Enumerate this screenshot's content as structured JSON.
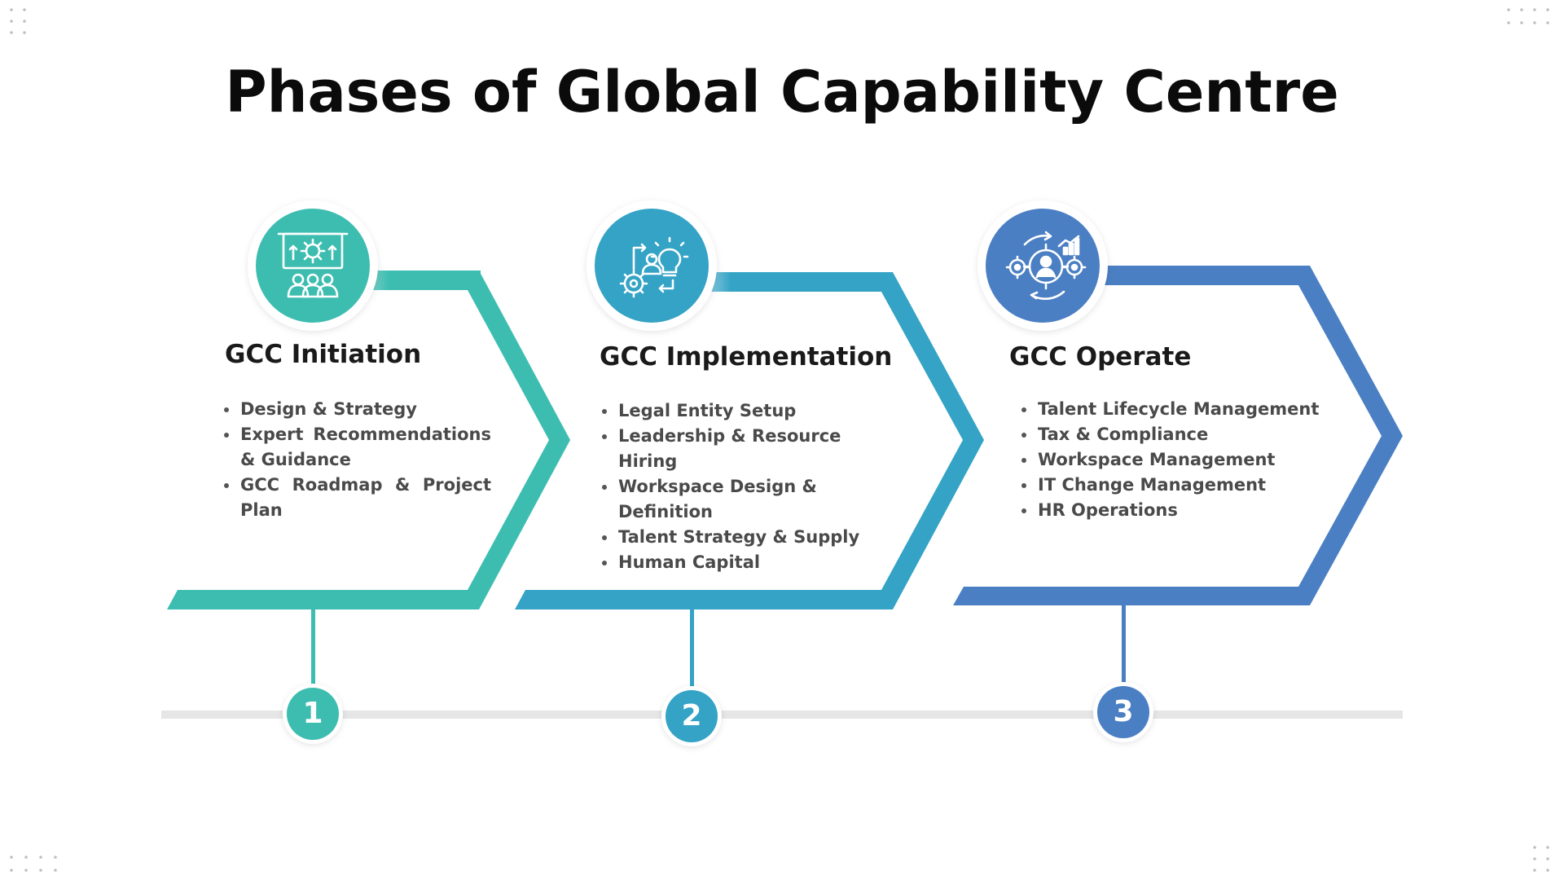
{
  "title": "Phases of Global Capability Centre",
  "colors": {
    "phase1": "#3dbdb0",
    "phase2": "#34a3c5",
    "phase3": "#4b7fc3",
    "timeline": "#e6e6e6"
  },
  "phases": [
    {
      "number": "1",
      "title": "GCC Initiation",
      "icon": "presentation-team-icon",
      "bullets": [
        "Design & Strategy",
        "Expert Recommendations & Guidance",
        "GCC Roadmap & Project Plan"
      ]
    },
    {
      "number": "2",
      "title": "GCC Implementation",
      "icon": "idea-process-icon",
      "bullets": [
        "Legal Entity Setup",
        "Leadership & Resource Hiring",
        "Workspace Design & Definition",
        "Talent Strategy & Supply",
        "Human Capital"
      ]
    },
    {
      "number": "3",
      "title": "GCC Operate",
      "icon": "gears-operations-icon",
      "bullets": [
        "Talent Lifecycle Management",
        "Tax & Compliance",
        "Workspace Management",
        "IT Change Management",
        "HR Operations"
      ]
    }
  ]
}
